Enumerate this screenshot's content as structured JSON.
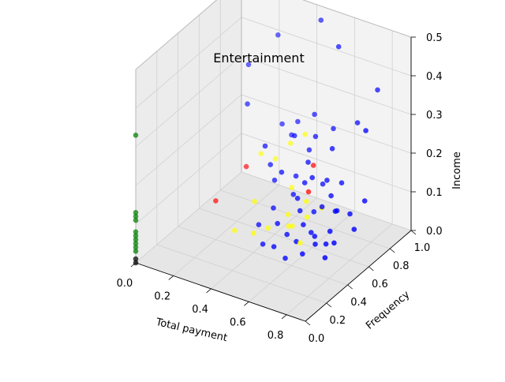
{
  "chart_data": {
    "type": "scatter",
    "projection": "3d",
    "title": "Entertainment",
    "xlabel": "Total payment",
    "ylabel": "Frequency",
    "zlabel": "Income",
    "xlim": [
      0,
      0.9
    ],
    "ylim": [
      0,
      1.0
    ],
    "zlim": [
      0,
      0.5
    ],
    "xticks": [
      "0.0",
      "0.2",
      "0.4",
      "0.6",
      "0.8"
    ],
    "yticks": [
      "0.0",
      "0.2",
      "0.4",
      "0.6",
      "0.8",
      "1.0"
    ],
    "zticks": [
      "0.0",
      "0.1",
      "0.2",
      "0.3",
      "0.4",
      "0.5"
    ],
    "grid": true,
    "legend": "none",
    "series": [
      {
        "color": "#0000ff",
        "points": [
          [
            0.45,
            0.95,
            0.48
          ],
          [
            0.6,
            0.85,
            0.46
          ],
          [
            0.75,
            0.95,
            0.35
          ],
          [
            0.8,
            0.75,
            0.3
          ],
          [
            0.7,
            0.85,
            0.28
          ],
          [
            0.5,
            0.8,
            0.28
          ],
          [
            0.45,
            0.7,
            0.24
          ],
          [
            0.55,
            0.72,
            0.25
          ],
          [
            0.6,
            0.8,
            0.26
          ],
          [
            0.65,
            0.7,
            0.24
          ],
          [
            0.3,
            0.85,
            0.21
          ],
          [
            0.35,
            0.85,
            0.19
          ],
          [
            0.5,
            0.75,
            0.2
          ],
          [
            0.55,
            0.65,
            0.2
          ],
          [
            0.6,
            0.6,
            0.18
          ],
          [
            0.65,
            0.65,
            0.17
          ],
          [
            0.7,
            0.6,
            0.15
          ],
          [
            0.75,
            0.55,
            0.13
          ],
          [
            0.8,
            0.6,
            0.12
          ],
          [
            0.7,
            0.7,
            0.16
          ],
          [
            0.6,
            0.7,
            0.14
          ],
          [
            0.55,
            0.55,
            0.13
          ],
          [
            0.5,
            0.6,
            0.12
          ],
          [
            0.45,
            0.5,
            0.1
          ],
          [
            0.5,
            0.45,
            0.08
          ],
          [
            0.55,
            0.45,
            0.06
          ],
          [
            0.6,
            0.45,
            0.05
          ],
          [
            0.65,
            0.5,
            0.07
          ],
          [
            0.7,
            0.45,
            0.06
          ],
          [
            0.75,
            0.5,
            0.09
          ],
          [
            0.8,
            0.45,
            0.08
          ],
          [
            0.85,
            0.65,
            0.15
          ],
          [
            0.4,
            0.6,
            0.14
          ],
          [
            0.35,
            0.65,
            0.16
          ],
          [
            0.62,
            0.58,
            0.1
          ],
          [
            0.58,
            0.52,
            0.11
          ],
          [
            0.68,
            0.55,
            0.13
          ],
          [
            0.72,
            0.62,
            0.11
          ],
          [
            0.48,
            0.66,
            0.15
          ],
          [
            0.66,
            0.4,
            0.04
          ],
          [
            0.4,
            0.45,
            0.06
          ],
          [
            0.45,
            0.4,
            0.03
          ],
          [
            0.52,
            0.38,
            0.04
          ],
          [
            0.58,
            0.38,
            0.02
          ],
          [
            0.2,
            0.7,
            0.28
          ],
          [
            0.35,
            0.6,
            0.22
          ],
          [
            0.78,
            0.4,
            0.05
          ],
          [
            0.85,
            0.55,
            0.1
          ],
          [
            0.15,
            0.8,
            0.35
          ],
          [
            0.25,
            0.9,
            0.42
          ],
          [
            0.62,
            0.48,
            0.09
          ],
          [
            0.56,
            0.6,
            0.16
          ],
          [
            0.46,
            0.56,
            0.18
          ],
          [
            0.4,
            0.82,
            0.24
          ],
          [
            0.68,
            0.48,
            0.07
          ],
          [
            0.74,
            0.48,
            0.06
          ]
        ]
      },
      {
        "color": "#ffff00",
        "points": [
          [
            0.3,
            0.65,
            0.18
          ],
          [
            0.4,
            0.75,
            0.2
          ],
          [
            0.45,
            0.8,
            0.22
          ],
          [
            0.35,
            0.5,
            0.1
          ],
          [
            0.5,
            0.55,
            0.08
          ],
          [
            0.55,
            0.5,
            0.07
          ],
          [
            0.6,
            0.55,
            0.09
          ],
          [
            0.45,
            0.45,
            0.06
          ],
          [
            0.4,
            0.4,
            0.05
          ],
          [
            0.3,
            0.4,
            0.04
          ],
          [
            0.65,
            0.6,
            0.11
          ],
          [
            0.58,
            0.58,
            0.12
          ],
          [
            0.52,
            0.52,
            0.06
          ],
          [
            0.62,
            0.45,
            0.05
          ],
          [
            0.36,
            0.68,
            0.17
          ],
          [
            0.48,
            0.62,
            0.13
          ]
        ]
      },
      {
        "color": "#ff0000",
        "points": [
          [
            0.25,
            0.6,
            0.15
          ],
          [
            0.2,
            0.4,
            0.1
          ],
          [
            0.55,
            0.7,
            0.18
          ],
          [
            0.58,
            0.6,
            0.14
          ]
        ]
      },
      {
        "color": "#008000",
        "points": [
          [
            0.0,
            0.0,
            0.33
          ],
          [
            0.0,
            0.0,
            0.13
          ],
          [
            0.0,
            0.0,
            0.12
          ],
          [
            0.0,
            0.0,
            0.11
          ],
          [
            0.0,
            0.0,
            0.08
          ],
          [
            0.0,
            0.0,
            0.07
          ],
          [
            0.0,
            0.0,
            0.06
          ],
          [
            0.0,
            0.0,
            0.05
          ],
          [
            0.0,
            0.0,
            0.04
          ],
          [
            0.0,
            0.0,
            0.03
          ]
        ]
      },
      {
        "color": "#000000",
        "points": [
          [
            0.0,
            0.0,
            0.01
          ],
          [
            0.0,
            0.0,
            0.0
          ]
        ]
      }
    ]
  }
}
